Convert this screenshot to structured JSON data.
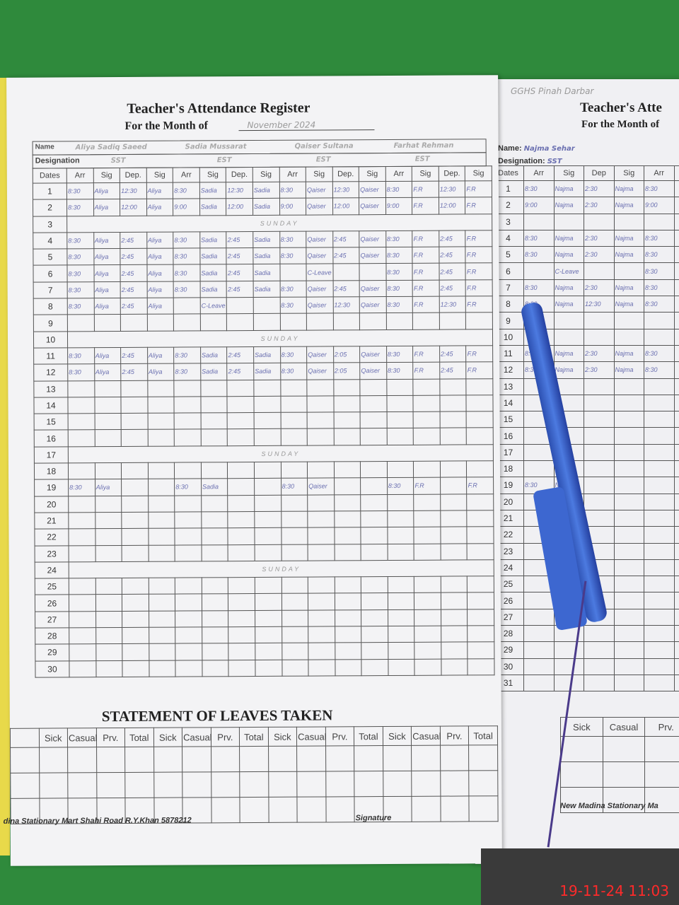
{
  "left_page": {
    "title": "Teacher's Attendance Register",
    "month_label": "For the Month of",
    "month_value": "November 2024",
    "name_label": "Name",
    "designation_label": "Designation",
    "dates_label": "Dates",
    "teachers": [
      {
        "name": "Aliya Sadiq Saeed",
        "designation": "SST"
      },
      {
        "name": "Sadia Mussarat",
        "designation": "EST"
      },
      {
        "name": "Qaiser Sultana",
        "designation": "EST"
      },
      {
        "name": "Farhat Rehman",
        "designation": "EST"
      }
    ],
    "column_headers": [
      "Arr",
      "Sig",
      "Dep.",
      "Sig",
      "Arr",
      "Sig",
      "Dep.",
      "Sig",
      "Arr",
      "Sig",
      "Dep.",
      "Sig",
      "Arr",
      "Sig",
      "Dep.",
      "Sig"
    ],
    "rows": [
      {
        "date": "1",
        "cells": [
          "8:30",
          "Aliya",
          "12:30",
          "Aliya",
          "8:30",
          "Sadia",
          "12:30",
          "Sadia",
          "8:30",
          "Qaiser",
          "12:30",
          "Qaiser",
          "8:30",
          "F.R",
          "12:30",
          "F.R"
        ]
      },
      {
        "date": "2",
        "cells": [
          "8:30",
          "Aliya",
          "12:00",
          "Aliya",
          "9:00",
          "Sadia",
          "12:00",
          "Sadia",
          "9:00",
          "Qaiser",
          "12:00",
          "Qaiser",
          "9:00",
          "F.R",
          "12:00",
          "F.R"
        ]
      },
      {
        "date": "3",
        "note": "SUNDAY"
      },
      {
        "date": "4",
        "cells": [
          "8:30",
          "Aliya",
          "2:45",
          "Aliya",
          "8:30",
          "Sadia",
          "2:45",
          "Sadia",
          "8:30",
          "Qaiser",
          "2:45",
          "Qaiser",
          "8:30",
          "F.R",
          "2:45",
          "F.R"
        ]
      },
      {
        "date": "5",
        "cells": [
          "8:30",
          "Aliya",
          "2:45",
          "Aliya",
          "8:30",
          "Sadia",
          "2:45",
          "Sadia",
          "8:30",
          "Qaiser",
          "2:45",
          "Qaiser",
          "8:30",
          "F.R",
          "2:45",
          "F.R"
        ]
      },
      {
        "date": "6",
        "cells": [
          "8:30",
          "Aliya",
          "2:45",
          "Aliya",
          "8:30",
          "Sadia",
          "2:45",
          "Sadia",
          "",
          "C-Leave",
          "",
          "",
          "8:30",
          "F.R",
          "2:45",
          "F.R"
        ]
      },
      {
        "date": "7",
        "cells": [
          "8:30",
          "Aliya",
          "2:45",
          "Aliya",
          "8:30",
          "Sadia",
          "2:45",
          "Sadia",
          "8:30",
          "Qaiser",
          "2:45",
          "Qaiser",
          "8:30",
          "F.R",
          "2:45",
          "F.R"
        ]
      },
      {
        "date": "8",
        "cells": [
          "8:30",
          "Aliya",
          "2:45",
          "Aliya",
          "",
          "C-Leave",
          "",
          "",
          "8:30",
          "Qaiser",
          "12:30",
          "Qaiser",
          "8:30",
          "F.R",
          "12:30",
          "F.R"
        ]
      },
      {
        "date": "9"
      },
      {
        "date": "10",
        "note": "SUNDAY"
      },
      {
        "date": "11",
        "cells": [
          "8:30",
          "Aliya",
          "2:45",
          "Aliya",
          "8:30",
          "Sadia",
          "2:45",
          "Sadia",
          "8:30",
          "Qaiser",
          "2:05",
          "Qaiser",
          "8:30",
          "F.R",
          "2:45",
          "F.R"
        ]
      },
      {
        "date": "12",
        "cells": [
          "8:30",
          "Aliya",
          "2:45",
          "Aliya",
          "8:30",
          "Sadia",
          "2:45",
          "Sadia",
          "8:30",
          "Qaiser",
          "2:05",
          "Qaiser",
          "8:30",
          "F.R",
          "2:45",
          "F.R"
        ]
      },
      {
        "date": "13"
      },
      {
        "date": "14"
      },
      {
        "date": "15"
      },
      {
        "date": "16"
      },
      {
        "date": "17",
        "note": "SUNDAY"
      },
      {
        "date": "18"
      },
      {
        "date": "19",
        "cells": [
          "8:30",
          "Aliya",
          "",
          "",
          "8:30",
          "Sadia",
          "",
          "",
          "8:30",
          "Qaiser",
          "",
          "",
          "8:30",
          "F.R",
          "",
          "F.R"
        ]
      },
      {
        "date": "20"
      },
      {
        "date": "21"
      },
      {
        "date": "22"
      },
      {
        "date": "23"
      },
      {
        "date": "24",
        "note": "SUNDAY"
      },
      {
        "date": "25"
      },
      {
        "date": "26"
      },
      {
        "date": "27"
      },
      {
        "date": "28"
      },
      {
        "date": "29"
      },
      {
        "date": "30"
      }
    ],
    "leaves_title": "STATEMENT OF LEAVES TAKEN",
    "leave_headers": [
      "Sick",
      "Casual",
      "Prv.",
      "Total",
      "Sick",
      "Casual",
      "Prv.",
      "Total",
      "Sick",
      "Casual",
      "Prv.",
      "Total",
      "Sick",
      "Casual",
      "Prv.",
      "Total"
    ],
    "footer_publisher": "dina Stationary Mart Shahi Road R.Y.Khan 5878212",
    "footer_signature": "Signature"
  },
  "right_page": {
    "school": "GGHS Pinah Darbar",
    "title": "Teacher's Atte",
    "month_label": "For the Month of",
    "name_label": "Name:",
    "name_value": "Najma Sehar",
    "designation_label": "Designation:",
    "designation_value": "SST",
    "dates_label": "Dates",
    "column_headers": [
      "Arr",
      "Sig",
      "Dep",
      "Sig",
      "Arr",
      "Sig"
    ],
    "rows": [
      {
        "date": "1",
        "cells": [
          "8:30",
          "Najma",
          "2:30",
          "Najma",
          "8:30",
          ""
        ]
      },
      {
        "date": "2",
        "cells": [
          "9:00",
          "Najma",
          "2:30",
          "Najma",
          "9:00",
          ""
        ]
      },
      {
        "date": "3"
      },
      {
        "date": "4",
        "cells": [
          "8:30",
          "Najma",
          "2:30",
          "Najma",
          "8:30",
          ""
        ]
      },
      {
        "date": "5",
        "cells": [
          "8:30",
          "Najma",
          "2:30",
          "Najma",
          "8:30",
          ""
        ]
      },
      {
        "date": "6",
        "cells": [
          "",
          "C-Leave",
          "",
          "",
          "8:30",
          ""
        ]
      },
      {
        "date": "7",
        "cells": [
          "8:30",
          "Najma",
          "2:30",
          "Najma",
          "8:30",
          ""
        ]
      },
      {
        "date": "8",
        "cells": [
          "8:30",
          "Najma",
          "12:30",
          "Najma",
          "8:30",
          ""
        ]
      },
      {
        "date": "9"
      },
      {
        "date": "10"
      },
      {
        "date": "11",
        "cells": [
          "8:30",
          "Najma",
          "2:30",
          "Najma",
          "8:30",
          ""
        ]
      },
      {
        "date": "12",
        "cells": [
          "8:30",
          "Najma",
          "2:30",
          "Najma",
          "8:30",
          ""
        ]
      },
      {
        "date": "13"
      },
      {
        "date": "14"
      },
      {
        "date": "15"
      },
      {
        "date": "16"
      },
      {
        "date": "17"
      },
      {
        "date": "18"
      },
      {
        "date": "19",
        "cells": [
          "8:30",
          "Najma",
          "",
          "",
          "",
          ""
        ]
      },
      {
        "date": "20"
      },
      {
        "date": "21"
      },
      {
        "date": "22"
      },
      {
        "date": "23"
      },
      {
        "date": "24"
      },
      {
        "date": "25"
      },
      {
        "date": "26"
      },
      {
        "date": "27"
      },
      {
        "date": "28"
      },
      {
        "date": "29"
      },
      {
        "date": "30"
      },
      {
        "date": "31"
      }
    ],
    "leave_headers": [
      "Sick",
      "Casual",
      "Prv."
    ],
    "footer_publisher": "New Madina Stationary Ma"
  },
  "timestamp": "19-11-24  11:03"
}
